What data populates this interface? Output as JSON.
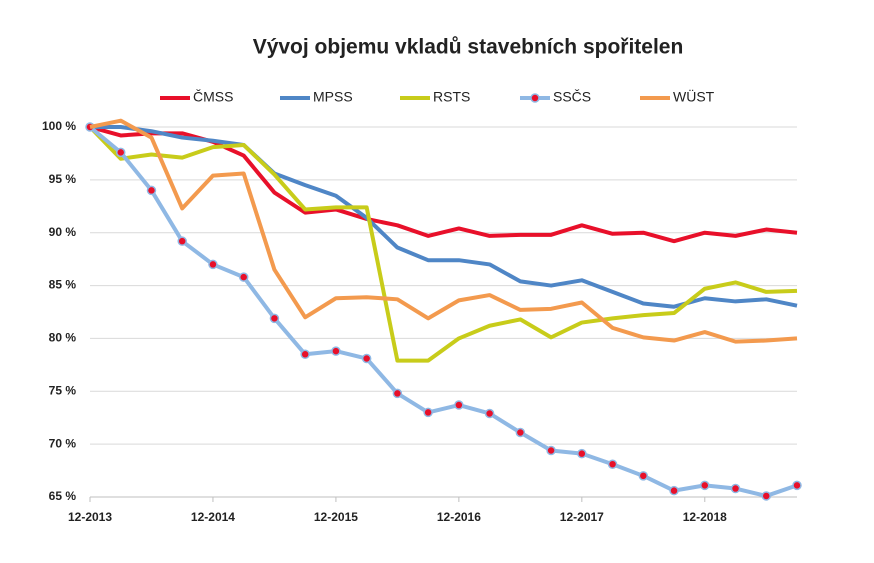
{
  "chart_data": {
    "type": "line",
    "title": "Vývoj objemu vkladů stavebních spořitelen",
    "categories": [
      "12-2013",
      null,
      null,
      null,
      "12-2014",
      null,
      null,
      null,
      "12-2015",
      null,
      null,
      null,
      "12-2016",
      null,
      null,
      null,
      "12-2017",
      null,
      null,
      null,
      "12-2018",
      null,
      null,
      null
    ],
    "series": [
      {
        "name": "ČMSS",
        "color": "#e8102a",
        "values": [
          100,
          99.2,
          99.4,
          99.4,
          98.6,
          97.3,
          93.8,
          91.9,
          92.2,
          91.3,
          90.7,
          89.7,
          90.4,
          89.7,
          89.8,
          89.8,
          90.7,
          89.9,
          90.0,
          89.2,
          90.0,
          89.7,
          90.3,
          90.0
        ]
      },
      {
        "name": "MPSS",
        "color": "#4f86c6",
        "values": [
          100,
          100,
          99.6,
          99.0,
          98.7,
          98.3,
          95.6,
          94.5,
          93.5,
          91.4,
          88.6,
          87.4,
          87.4,
          87.0,
          85.4,
          85.0,
          85.5,
          84.4,
          83.3,
          83.0,
          83.8,
          83.5,
          83.7,
          83.1
        ]
      },
      {
        "name": "RSTS",
        "color": "#c8cc1a",
        "values": [
          100,
          97.0,
          97.4,
          97.1,
          98.1,
          98.3,
          95.5,
          92.2,
          92.4,
          92.4,
          77.9,
          77.9,
          80.0,
          81.2,
          81.8,
          80.1,
          81.5,
          81.9,
          82.2,
          82.4,
          84.7,
          85.3,
          84.4,
          84.5
        ]
      },
      {
        "name": "SSČS",
        "color": "#8fb8e4",
        "marker": "#e8102a",
        "values": [
          100,
          97.6,
          94.0,
          89.2,
          87.0,
          85.8,
          81.9,
          78.5,
          78.8,
          78.1,
          74.8,
          73.0,
          73.7,
          72.9,
          71.1,
          69.4,
          69.1,
          68.1,
          67.0,
          65.6,
          66.1,
          65.8,
          65.1,
          66.1
        ]
      },
      {
        "name": "WÜST",
        "color": "#f39a4e",
        "values": [
          100,
          100.6,
          99.0,
          92.3,
          95.4,
          95.6,
          86.5,
          82.0,
          83.8,
          83.9,
          83.7,
          81.9,
          83.6,
          84.1,
          82.7,
          82.8,
          83.4,
          81.0,
          80.1,
          79.8,
          80.6,
          79.7,
          79.8,
          80.0
        ]
      }
    ],
    "ylim": [
      65,
      100
    ],
    "yticks": [
      {
        "value": 65,
        "label": "65 %"
      },
      {
        "value": 70,
        "label": "70 %"
      },
      {
        "value": 75,
        "label": "75 %"
      },
      {
        "value": 80,
        "label": "80 %"
      },
      {
        "value": 85,
        "label": "85 %"
      },
      {
        "value": 90,
        "label": "90 %"
      },
      {
        "value": 95,
        "label": "95 %"
      },
      {
        "value": 100,
        "label": "100 %"
      }
    ],
    "grid": true
  }
}
